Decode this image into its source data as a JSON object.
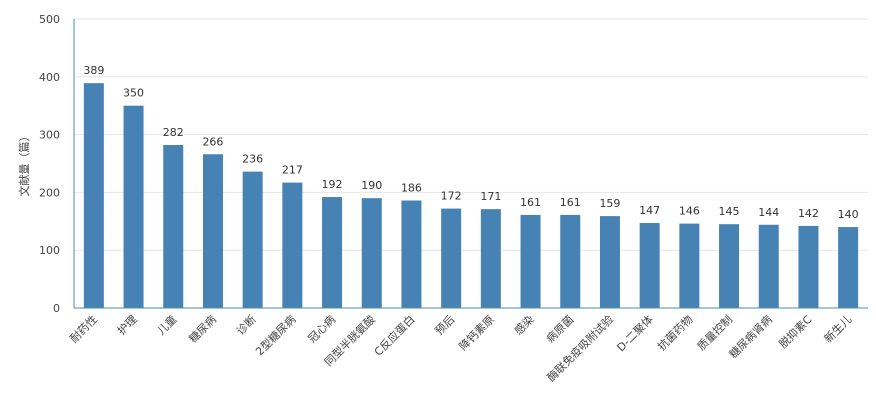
{
  "chart_data": {
    "type": "bar",
    "ylabel": "文献量（篇）",
    "ylim": [
      0,
      500
    ],
    "yticks": [
      0,
      100,
      200,
      300,
      400,
      500
    ],
    "grid": true,
    "categories": [
      "耐药性",
      "护理",
      "儿童",
      "糖尿病",
      "诊断",
      "2型糖尿病",
      "冠心病",
      "同型半胱氨酸",
      "C反应蛋白",
      "预后",
      "降钙素原",
      "感染",
      "病原菌",
      "酶联免疫吸附试验",
      "D-二聚体",
      "抗菌药物",
      "质量控制",
      "糖尿病肾病",
      "脱抑素C",
      "新生儿"
    ],
    "values": [
      389,
      350,
      282,
      266,
      236,
      217,
      192,
      190,
      186,
      172,
      171,
      161,
      161,
      159,
      147,
      146,
      145,
      144,
      142,
      140
    ],
    "colors": {
      "bar": "#4682b4",
      "axis": "#4a90a4",
      "grid": "#e6e6e6"
    }
  }
}
